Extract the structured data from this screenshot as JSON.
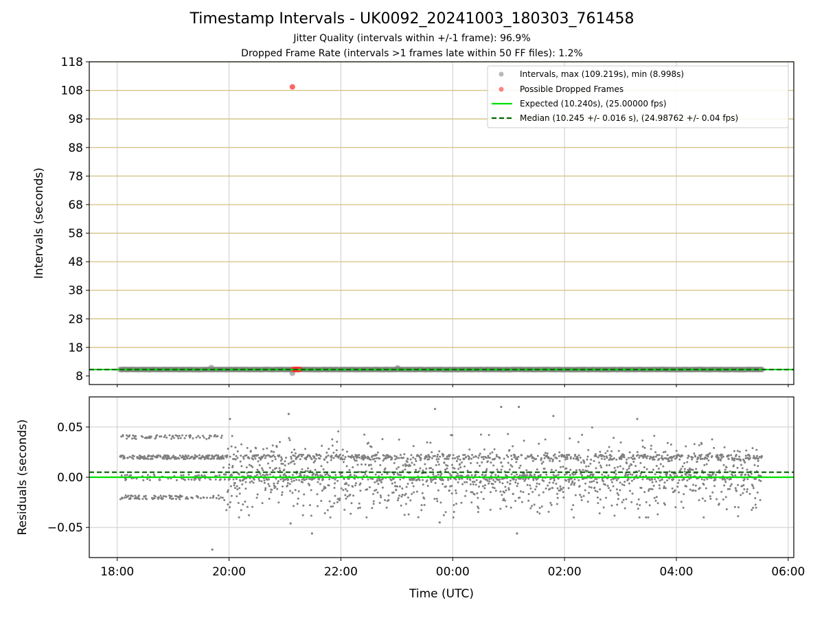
{
  "title": "Timestamp Intervals - UK0092_20241003_180303_761458",
  "subtitle_1": "Jitter Quality (intervals within +/-1 frame): 96.9%",
  "subtitle_2": "Dropped Frame Rate (intervals >1 frames late within 50 FF files): 1.2%",
  "colors": {
    "points": "#808080",
    "dropped": "#ff3030",
    "expected": "#00e000",
    "median": "#006400",
    "threshold_lines": "#d4c080",
    "grid": "#cccccc"
  },
  "chart_data": [
    {
      "type": "scatter",
      "panel": "intervals",
      "ylabel": "Intervals (seconds)",
      "xlabel": "",
      "ylim": [
        5,
        118
      ],
      "yticks": [
        "8",
        "18",
        "28",
        "38",
        "48",
        "58",
        "68",
        "78",
        "88",
        "98",
        "108",
        "118"
      ],
      "x_range_hours": [
        17.5,
        30.1
      ],
      "grid": true,
      "legend_position": "top-right",
      "threshold_lines": [
        18,
        28,
        38,
        48,
        58,
        68,
        78,
        88,
        98,
        108,
        118
      ],
      "series": [
        {
          "name": "Intervals, max (109.219s), min (8.998s)",
          "kind": "scatter",
          "x_start": "18:03",
          "x_end": "05:32",
          "y_typical": 10.245,
          "outliers": [
            {
              "x": "19:41",
              "y": 10.9
            },
            {
              "x": "21:08",
              "y": 8.998
            },
            {
              "x": "23:01",
              "y": 10.8
            }
          ]
        },
        {
          "name": "Possible Dropped Frames",
          "kind": "scatter",
          "points": [
            {
              "x": "21:08",
              "y": 109.219
            },
            {
              "x": "21:09",
              "y": 10.3
            },
            {
              "x": "21:10",
              "y": 10.3
            },
            {
              "x": "21:11",
              "y": 10.3
            },
            {
              "x": "21:12",
              "y": 10.3
            },
            {
              "x": "21:13",
              "y": 10.3
            },
            {
              "x": "21:14",
              "y": 10.3
            },
            {
              "x": "21:15",
              "y": 10.3
            },
            {
              "x": "21:16",
              "y": 10.3
            }
          ]
        },
        {
          "name": "Expected (10.240s), (25.00000 fps)",
          "kind": "hline",
          "y": 10.24
        },
        {
          "name": "Median (10.245 +/- 0.016 s), (24.98762 +/- 0.04 fps)",
          "kind": "hline-dashed",
          "y": 10.245
        }
      ]
    },
    {
      "type": "scatter",
      "panel": "residuals",
      "xlabel": "Time (UTC)",
      "ylabel": "Residuals (seconds)",
      "ylim": [
        -0.08,
        0.08
      ],
      "yticks": [
        "0.05",
        "0.00",
        "−0.05"
      ],
      "xticks": [
        "18:00",
        "20:00",
        "22:00",
        "00:00",
        "02:00",
        "04:00",
        "06:00"
      ],
      "x_range_hours": [
        17.5,
        30.1
      ],
      "grid": true,
      "series": [
        {
          "name": "",
          "kind": "residual-scatter",
          "x_start": "18:03",
          "x_end": "05:32",
          "levels": [
            0.02,
            0.0,
            -0.02,
            0.04
          ],
          "spread": 0.03
        },
        {
          "name": "",
          "kind": "hline",
          "y": 0.0
        },
        {
          "name": "",
          "kind": "hline-dashed",
          "y": 0.005
        }
      ],
      "extreme_points": [
        {
          "x": "19:42",
          "y": -0.072
        },
        {
          "x": "21:06",
          "y": -0.046
        },
        {
          "x": "21:29",
          "y": -0.056
        },
        {
          "x": "23:46",
          "y": -0.045
        },
        {
          "x": "01:09",
          "y": -0.056
        },
        {
          "x": "21:04",
          "y": 0.063
        },
        {
          "x": "23:41",
          "y": 0.068
        },
        {
          "x": "00:52",
          "y": 0.07
        },
        {
          "x": "01:11",
          "y": 0.07
        },
        {
          "x": "01:48",
          "y": 0.061
        },
        {
          "x": "03:18",
          "y": 0.058
        },
        {
          "x": "20:01",
          "y": 0.058
        }
      ]
    }
  ]
}
